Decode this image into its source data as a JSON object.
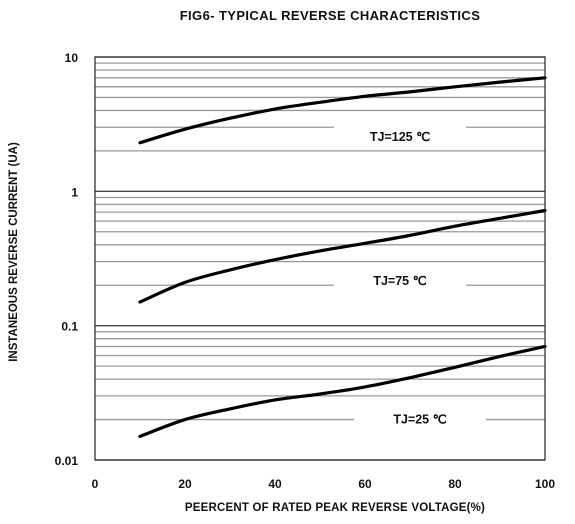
{
  "chart_data": {
    "type": "line",
    "title": "FIG6- TYPICAL REVERSE CHARACTERISTICS",
    "xlabel": "PEERCENT OF RATED PEAK REVERSE VOLTAGE(%)",
    "ylabel": "INSTANEOUS REVERSE CURRENT (UA)",
    "xlim": [
      0,
      100
    ],
    "ylim": [
      0.01,
      10
    ],
    "yscale": "log",
    "x_ticks": [
      "0",
      "20",
      "40",
      "60",
      "80",
      "100"
    ],
    "y_ticks": [
      "0.01",
      "0.1",
      "1",
      "10"
    ],
    "grid": "horizontal",
    "series": [
      {
        "name": "TJ=125 ℃",
        "x": [
          10,
          20,
          30,
          40,
          50,
          60,
          70,
          80,
          90,
          100
        ],
        "values": [
          2.3,
          2.9,
          3.5,
          4.1,
          4.6,
          5.1,
          5.5,
          6.0,
          6.5,
          7.0
        ]
      },
      {
        "name": "TJ=75 ℃",
        "x": [
          10,
          20,
          30,
          40,
          50,
          60,
          70,
          80,
          90,
          100
        ],
        "values": [
          0.15,
          0.21,
          0.26,
          0.31,
          0.36,
          0.41,
          0.47,
          0.55,
          0.63,
          0.72
        ]
      },
      {
        "name": "TJ=25 ℃",
        "x": [
          10,
          20,
          30,
          40,
          50,
          60,
          70,
          80,
          90,
          100
        ],
        "values": [
          0.015,
          0.02,
          0.024,
          0.028,
          0.031,
          0.035,
          0.041,
          0.049,
          0.059,
          0.07
        ]
      }
    ]
  }
}
